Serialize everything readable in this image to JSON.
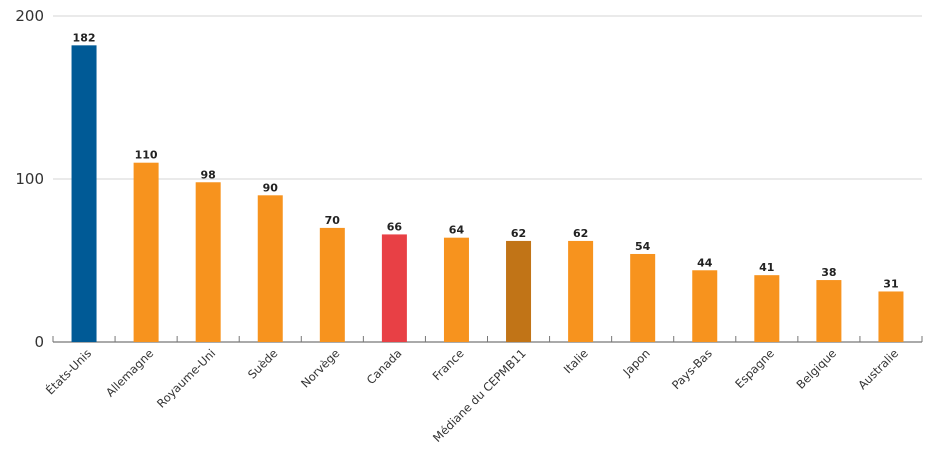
{
  "chart_data": {
    "type": "bar",
    "title": "",
    "xlabel": "",
    "ylabel": "",
    "ylim": [
      0,
      200
    ],
    "yticks": [
      0,
      100,
      200
    ],
    "grid": true,
    "categories": [
      "États-Unis",
      "Allemagne",
      "Royaume-Uni",
      "Suède",
      "Norvège",
      "Canada",
      "France",
      "Médiane du CEPMB11",
      "Italie",
      "Japon",
      "Pays-Bas",
      "Espagne",
      "Belgique",
      "Australie"
    ],
    "values": [
      182,
      110,
      98,
      90,
      70,
      66,
      64,
      62,
      62,
      54,
      44,
      41,
      38,
      31
    ],
    "colors": [
      "#005a96",
      "#f7931e",
      "#f7931e",
      "#f7931e",
      "#f7931e",
      "#e84045",
      "#f7931e",
      "#c17417",
      "#f7931e",
      "#f7931e",
      "#f7931e",
      "#f7931e",
      "#f7931e",
      "#f7931e"
    ]
  }
}
